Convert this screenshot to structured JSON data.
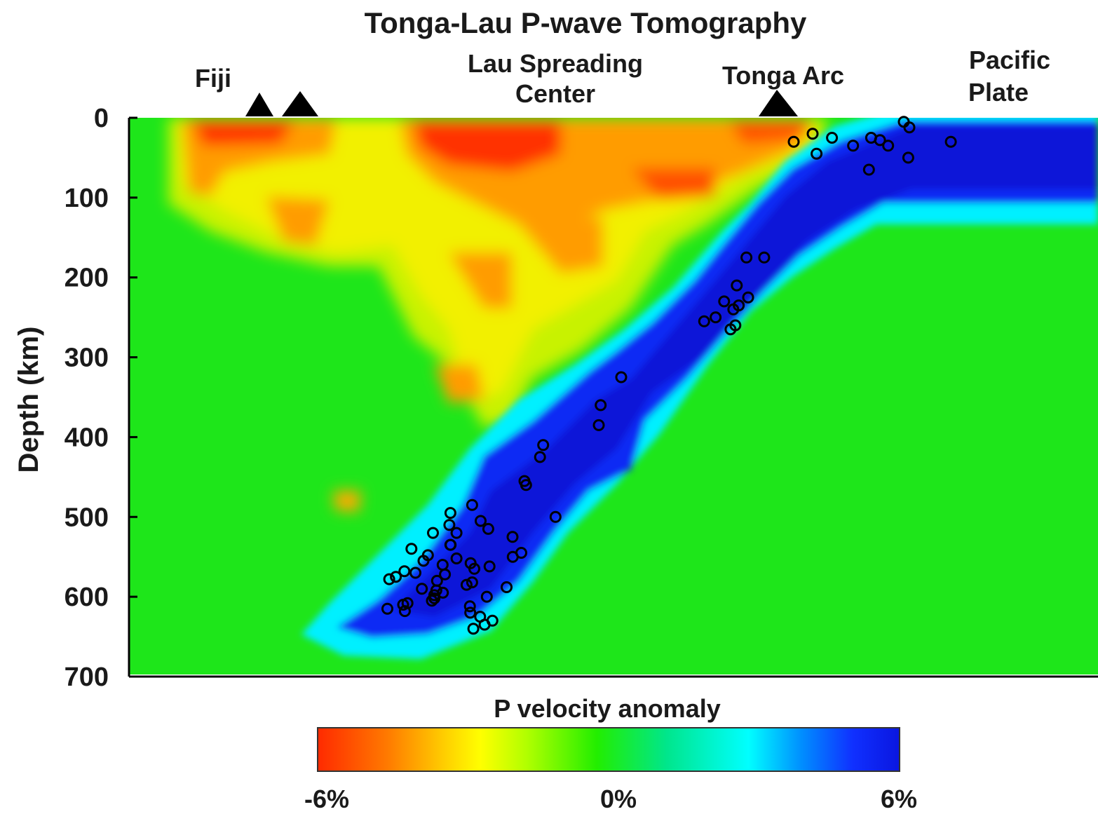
{
  "chart_data": {
    "type": "heatmap",
    "title": "Tonga-Lau P-wave Tomography",
    "ylabel": "Depth (km)",
    "ylim": [
      0,
      700
    ],
    "yticks": [
      0,
      100,
      200,
      300,
      400,
      500,
      600,
      700
    ],
    "y_inverted": true,
    "surface_labels": [
      {
        "text": "Fiji",
        "lines": [
          "Fiji"
        ]
      },
      {
        "text": "Lau Spreading Center",
        "lines": [
          "Lau Spreading",
          "Center"
        ]
      },
      {
        "text": "Tonga Arc",
        "lines": [
          "Tonga Arc"
        ]
      },
      {
        "text": "Pacific Plate",
        "lines": [
          "Pacific",
          "Plate"
        ]
      }
    ],
    "volcano_count": 3,
    "colorbar": {
      "label": "P velocity anomaly",
      "min": -6,
      "max": 6,
      "unit": "%",
      "tick_labels": [
        "-6%",
        "0%",
        "6%"
      ],
      "colors": [
        "#ff2a00",
        "#ff7a00",
        "#ffd000",
        "#ffff00",
        "#b0ff00",
        "#22ee00",
        "#00e68c",
        "#00ffff",
        "#0090ff",
        "#1030ff",
        "#0a16e0"
      ]
    },
    "features": [
      {
        "name": "subducting slab",
        "anomaly_sign": "positive"
      },
      {
        "name": "mantle wedge",
        "anomaly_sign": "negative"
      }
    ],
    "earthquakes_depth_km": [
      5,
      12,
      20,
      25,
      25,
      28,
      30,
      30,
      35,
      35,
      45,
      50,
      65,
      175,
      175,
      210,
      225,
      230,
      235,
      240,
      250,
      255,
      260,
      265,
      325,
      360,
      385,
      410,
      425,
      455,
      460,
      485,
      495,
      500,
      505,
      510,
      515,
      520,
      520,
      525,
      535,
      535,
      540,
      545,
      548,
      550,
      552,
      555,
      558,
      560,
      562,
      565,
      568,
      570,
      572,
      575,
      578,
      580,
      582,
      585,
      588,
      590,
      592,
      595,
      598,
      600,
      602,
      605,
      608,
      610,
      612,
      615,
      618,
      620,
      625,
      630,
      635,
      640
    ]
  }
}
